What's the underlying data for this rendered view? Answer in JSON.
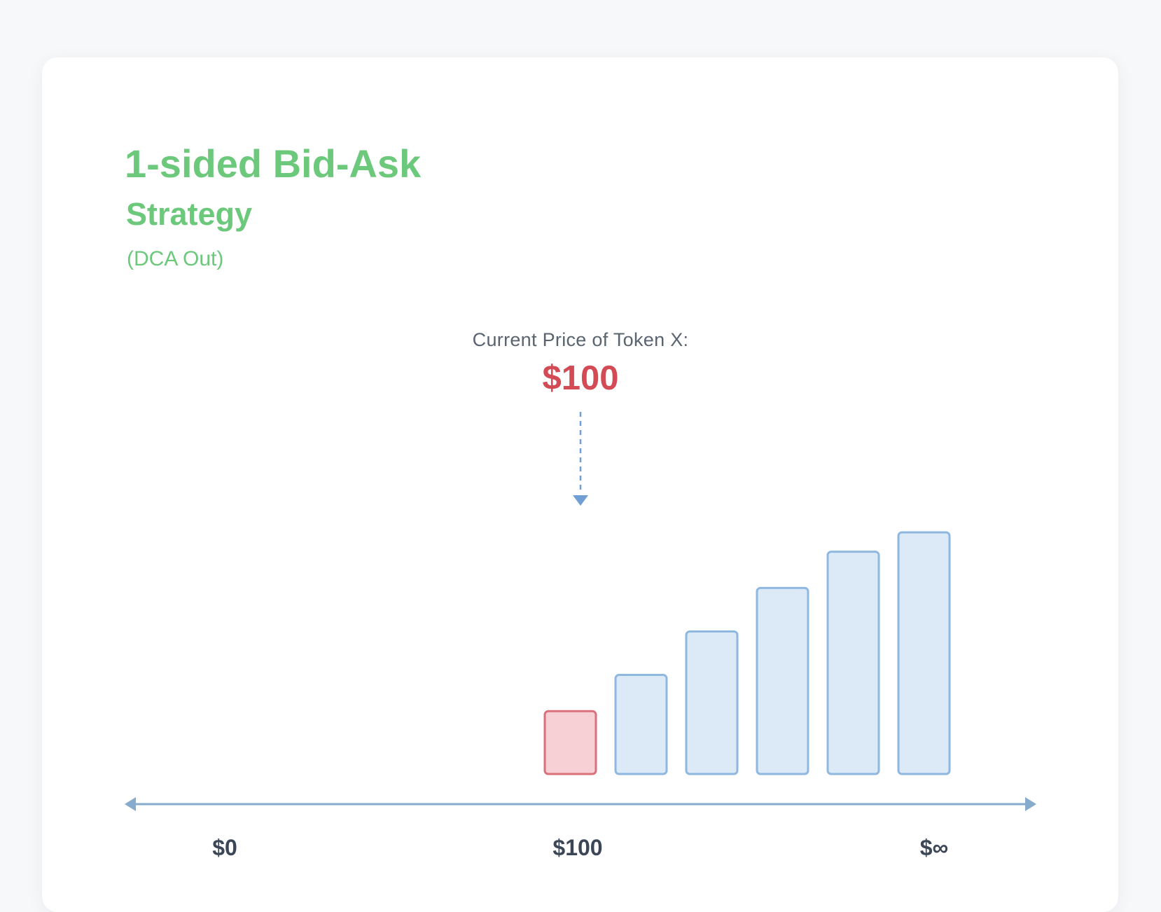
{
  "header": {
    "title": "1-sided Bid-Ask",
    "subtitle": "Strategy",
    "note": "(DCA Out)"
  },
  "price_marker": {
    "label": "Current Price of Token X:",
    "value": "$100"
  },
  "axis": {
    "labels": [
      "$0",
      "$100",
      "$∞"
    ]
  },
  "colors": {
    "title_green": "#6cc97c",
    "price_red": "#d24b55",
    "current_bin_fill": "#f7d0d5",
    "current_bin_stroke": "#d9707a",
    "ask_bin_fill": "#dce9f7",
    "ask_bin_stroke": "#8fb8e0",
    "axis_line": "#86abcc",
    "pointer": "#6f9fd4"
  },
  "bins": {
    "current_bin_index": 0,
    "relative_heights": [
      0.26,
      0.41,
      0.59,
      0.77,
      0.92,
      1.0
    ]
  }
}
